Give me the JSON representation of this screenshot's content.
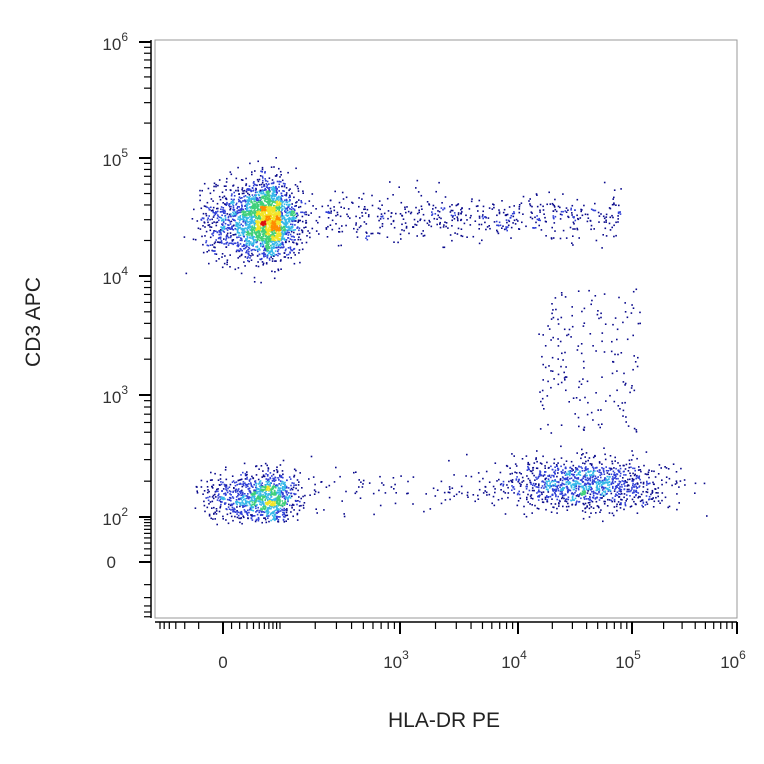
{
  "chart_data": {
    "type": "scatter",
    "title": "",
    "xlabel": "HLA-DR PE",
    "ylabel": "CD3 APC",
    "x_scale": "biexponential",
    "y_scale": "biexponential",
    "xlim": [
      -300,
      1000000
    ],
    "ylim": [
      -200,
      2000000
    ],
    "x_ticks": [
      {
        "value": 0,
        "base": "0",
        "exp": ""
      },
      {
        "value": 1000,
        "base": "10",
        "exp": "3"
      },
      {
        "value": 10000,
        "base": "10",
        "exp": "4"
      },
      {
        "value": 100000,
        "base": "10",
        "exp": "5"
      },
      {
        "value": 1000000,
        "base": "10",
        "exp": "6"
      }
    ],
    "y_ticks": [
      {
        "value": 0,
        "base": "0",
        "exp": ""
      },
      {
        "value": 100,
        "base": "10",
        "exp": "2"
      },
      {
        "value": 1000,
        "base": "10",
        "exp": "3"
      },
      {
        "value": 10000,
        "base": "10",
        "exp": "4"
      },
      {
        "value": 100000,
        "base": "10",
        "exp": "5"
      },
      {
        "value": 1000000,
        "base": "10",
        "exp": "6"
      }
    ],
    "density_colormap": [
      "#0a0a8c",
      "#2f3fd6",
      "#35b8e8",
      "#3fd07a",
      "#f2e528",
      "#ff8c00",
      "#e01010"
    ],
    "populations": [
      {
        "x_center": 60,
        "y_center": 30000,
        "x_spread": 40,
        "y_spread": 0.16,
        "count": 2600
      },
      {
        "x_center": 55,
        "y_center": 150,
        "x_spread": 40,
        "y_spread": 0.1,
        "count": 1100
      },
      {
        "x_center": 40000,
        "y_center": 190,
        "x_spread": 0.35,
        "y_spread": 0.1,
        "count": 1150
      },
      {
        "x_range": [
          200,
          80000
        ],
        "y_center": 32000,
        "y_spread": 0.1,
        "count": 520
      },
      {
        "x_range": [
          15000,
          120000
        ],
        "y_range": [
          500,
          8000
        ],
        "count": 180
      },
      {
        "x_range": [
          150,
          10000
        ],
        "y_center": 170,
        "y_spread": 0.09,
        "count": 110
      }
    ]
  }
}
